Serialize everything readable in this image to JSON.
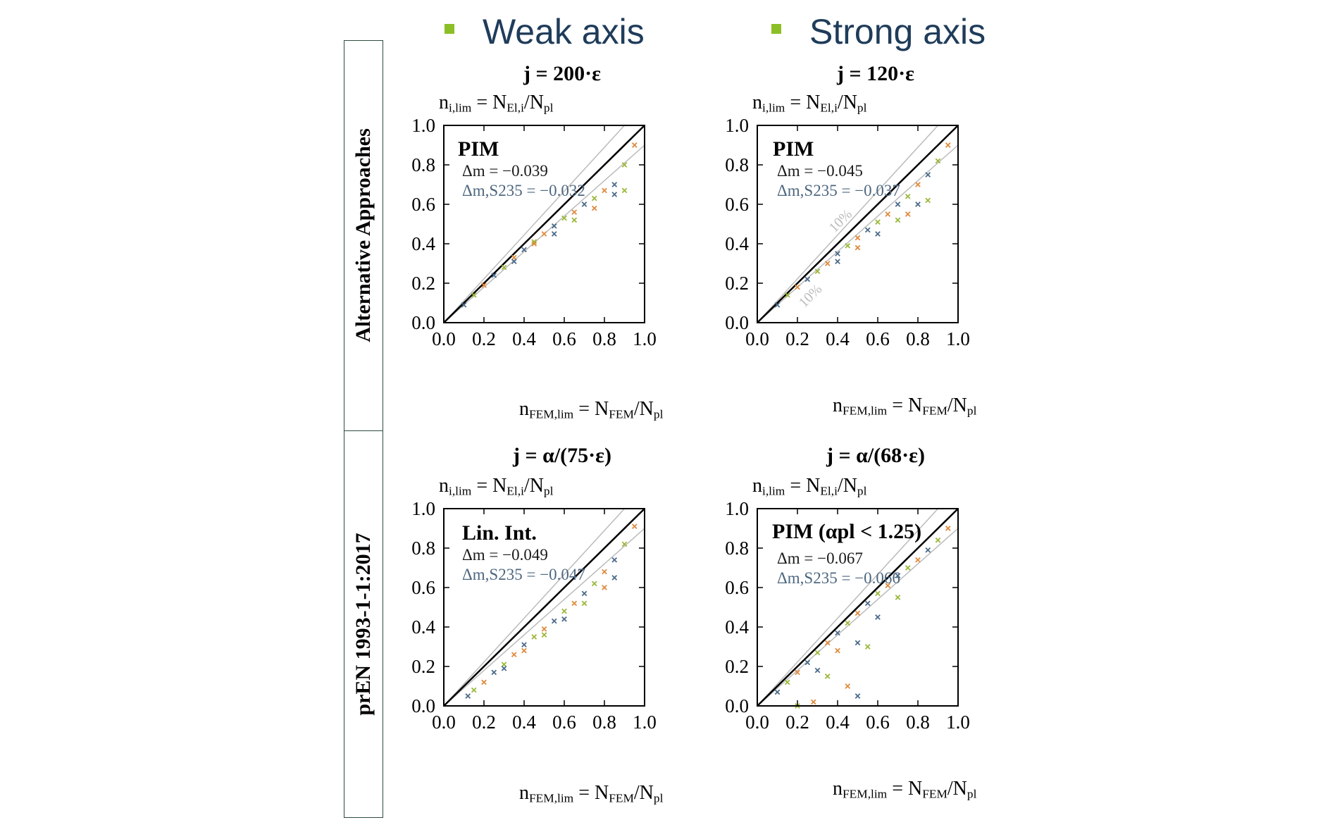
{
  "headers": {
    "weak": "Weak axis",
    "strong": "Strong axis"
  },
  "rows": {
    "top": "Alternative Approaches",
    "bottom": "prEN 1993-1-1:2017"
  },
  "colors": {
    "header_text": "#1f3c5a",
    "bullet": "#8cbf26",
    "marker_blue": "#4a6a8a",
    "marker_green": "#9ab83a",
    "marker_orange": "#e08a3c",
    "reference_line": "#000000",
    "band_line": "#bbbbbb"
  },
  "chart_data": [
    {
      "type": "scatter",
      "title": "j = 200·ε",
      "ylabel": "n_i,lim = N_El,i/N_pl",
      "xlabel": "n_FEM,lim = N_FEM/N_pl",
      "method": "PIM",
      "delta_m": "Δm = −0.039",
      "delta_m_s235": "Δm,S235 =  −0.032",
      "band_label": "",
      "xlim": [
        0,
        1
      ],
      "ylim": [
        0,
        1
      ],
      "ticks": [
        0.0,
        0.2,
        0.4,
        0.6,
        0.8,
        1.0
      ],
      "tick_labels": [
        "0.0",
        "0.2",
        "0.4",
        "0.6",
        "0.8",
        "1.0"
      ],
      "series": [
        {
          "marker": "x",
          "points": [
            [
              0.1,
              0.09
            ],
            [
              0.15,
              0.14
            ],
            [
              0.2,
              0.19
            ],
            [
              0.25,
              0.24
            ],
            [
              0.3,
              0.28
            ],
            [
              0.35,
              0.33
            ],
            [
              0.4,
              0.37
            ],
            [
              0.45,
              0.41
            ],
            [
              0.5,
              0.45
            ],
            [
              0.55,
              0.49
            ],
            [
              0.6,
              0.53
            ],
            [
              0.65,
              0.56
            ],
            [
              0.7,
              0.6
            ],
            [
              0.75,
              0.63
            ],
            [
              0.8,
              0.67
            ],
            [
              0.85,
              0.7
            ],
            [
              0.9,
              0.8
            ],
            [
              0.95,
              0.9
            ],
            [
              0.55,
              0.45
            ],
            [
              0.65,
              0.52
            ],
            [
              0.75,
              0.58
            ],
            [
              0.85,
              0.65
            ],
            [
              0.9,
              0.67
            ],
            [
              0.45,
              0.4
            ],
            [
              0.35,
              0.31
            ]
          ]
        }
      ]
    },
    {
      "type": "scatter",
      "title": "j = 120·ε",
      "ylabel": "n_i,lim = N_El,i/N_pl",
      "xlabel": "n_FEM,lim = N_FEM/N_pl",
      "method": "PIM",
      "delta_m": "Δm = −0.045",
      "delta_m_s235": "Δm,S235 = −0.037",
      "band_label": "10%",
      "xlim": [
        0,
        1
      ],
      "ylim": [
        0,
        1
      ],
      "ticks": [
        0.0,
        0.2,
        0.4,
        0.6,
        0.8,
        1.0
      ],
      "tick_labels": [
        "0.0",
        "0.2",
        "0.4",
        "0.6",
        "0.8",
        "1.0"
      ],
      "series": [
        {
          "marker": "x",
          "points": [
            [
              0.1,
              0.09
            ],
            [
              0.15,
              0.14
            ],
            [
              0.2,
              0.18
            ],
            [
              0.25,
              0.22
            ],
            [
              0.3,
              0.26
            ],
            [
              0.35,
              0.3
            ],
            [
              0.4,
              0.35
            ],
            [
              0.45,
              0.39
            ],
            [
              0.5,
              0.43
            ],
            [
              0.55,
              0.47
            ],
            [
              0.6,
              0.51
            ],
            [
              0.65,
              0.55
            ],
            [
              0.7,
              0.6
            ],
            [
              0.75,
              0.64
            ],
            [
              0.8,
              0.7
            ],
            [
              0.85,
              0.75
            ],
            [
              0.9,
              0.82
            ],
            [
              0.95,
              0.9
            ],
            [
              0.6,
              0.45
            ],
            [
              0.7,
              0.52
            ],
            [
              0.75,
              0.55
            ],
            [
              0.8,
              0.6
            ],
            [
              0.85,
              0.62
            ],
            [
              0.5,
              0.38
            ],
            [
              0.4,
              0.31
            ]
          ]
        }
      ]
    },
    {
      "type": "scatter",
      "title": "j = α/(75·ε)",
      "ylabel": "n_i,lim = N_El,i/N_pl",
      "xlabel": "n_FEM,lim = N_FEM/N_pl",
      "method": "Lin. Int.",
      "delta_m": "Δm = −0.049",
      "delta_m_s235": "Δm,S235 =  −0.047",
      "band_label": "",
      "xlim": [
        0,
        1
      ],
      "ylim": [
        0,
        1
      ],
      "ticks": [
        0.0,
        0.2,
        0.4,
        0.6,
        0.8,
        1.0
      ],
      "tick_labels": [
        "0.0",
        "0.2",
        "0.4",
        "0.6",
        "0.8",
        "1.0"
      ],
      "series": [
        {
          "marker": "x",
          "points": [
            [
              0.12,
              0.05
            ],
            [
              0.15,
              0.08
            ],
            [
              0.2,
              0.12
            ],
            [
              0.25,
              0.17
            ],
            [
              0.3,
              0.21
            ],
            [
              0.35,
              0.26
            ],
            [
              0.4,
              0.31
            ],
            [
              0.45,
              0.35
            ],
            [
              0.5,
              0.39
            ],
            [
              0.55,
              0.43
            ],
            [
              0.6,
              0.48
            ],
            [
              0.65,
              0.52
            ],
            [
              0.7,
              0.57
            ],
            [
              0.75,
              0.62
            ],
            [
              0.8,
              0.68
            ],
            [
              0.85,
              0.74
            ],
            [
              0.9,
              0.82
            ],
            [
              0.95,
              0.91
            ],
            [
              0.6,
              0.44
            ],
            [
              0.7,
              0.52
            ],
            [
              0.8,
              0.6
            ],
            [
              0.85,
              0.65
            ],
            [
              0.5,
              0.36
            ],
            [
              0.4,
              0.28
            ],
            [
              0.3,
              0.19
            ]
          ]
        }
      ]
    },
    {
      "type": "scatter",
      "title": "j = α/(68·ε)",
      "ylabel": "n_i,lim = N_El,i/N_pl",
      "xlabel": "n_FEM,lim = N_FEM/N_pl",
      "method": "PIM (αpl < 1.25)",
      "delta_m": "Δm = −0.067",
      "delta_m_s235": "Δm,S235 = −0.066",
      "band_label": "",
      "xlim": [
        0,
        1
      ],
      "ylim": [
        0,
        1
      ],
      "ticks": [
        0.0,
        0.2,
        0.4,
        0.6,
        0.8,
        1.0
      ],
      "tick_labels": [
        "0.0",
        "0.2",
        "0.4",
        "0.6",
        "0.8",
        "1.0"
      ],
      "series": [
        {
          "marker": "x",
          "points": [
            [
              0.1,
              0.07
            ],
            [
              0.15,
              0.12
            ],
            [
              0.2,
              0.17
            ],
            [
              0.25,
              0.22
            ],
            [
              0.3,
              0.27
            ],
            [
              0.35,
              0.32
            ],
            [
              0.4,
              0.37
            ],
            [
              0.45,
              0.42
            ],
            [
              0.5,
              0.47
            ],
            [
              0.55,
              0.52
            ],
            [
              0.6,
              0.57
            ],
            [
              0.65,
              0.61
            ],
            [
              0.7,
              0.66
            ],
            [
              0.75,
              0.7
            ],
            [
              0.8,
              0.74
            ],
            [
              0.85,
              0.79
            ],
            [
              0.9,
              0.84
            ],
            [
              0.95,
              0.9
            ],
            [
              0.3,
              0.18
            ],
            [
              0.35,
              0.15
            ],
            [
              0.4,
              0.28
            ],
            [
              0.5,
              0.32
            ],
            [
              0.55,
              0.3
            ],
            [
              0.45,
              0.1
            ],
            [
              0.5,
              0.05
            ],
            [
              0.2,
              0.0
            ],
            [
              0.28,
              0.02
            ],
            [
              0.6,
              0.45
            ],
            [
              0.7,
              0.55
            ]
          ]
        }
      ]
    }
  ]
}
